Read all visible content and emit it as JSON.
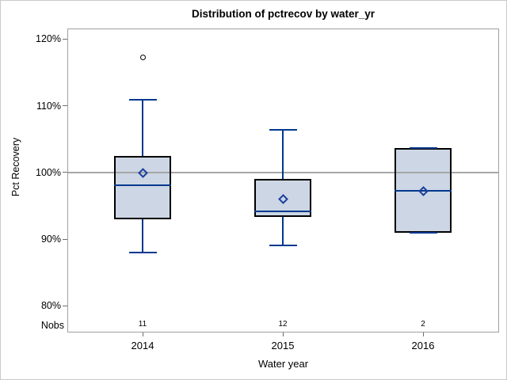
{
  "chart_data": {
    "type": "boxplot",
    "title": "Distribution of pctrecov by water_yr",
    "xlabel": "Water year",
    "ylabel": "Pct Recovery",
    "nobs_label": "Nobs",
    "y_axis": {
      "min": 80,
      "max": 120,
      "ticks": [
        120,
        110,
        100,
        90,
        80
      ],
      "tick_suffix": "%"
    },
    "reference_line": 100,
    "categories": [
      "2014",
      "2015",
      "2016"
    ],
    "series": [
      {
        "category": "2014",
        "low": 88.0,
        "q1": 93.0,
        "median": 98.1,
        "q3": 102.5,
        "high": 110.9,
        "mean": 99.9,
        "outliers": [
          117.2
        ],
        "nobs": "11"
      },
      {
        "category": "2015",
        "low": 89.1,
        "q1": 93.3,
        "median": 94.2,
        "q3": 99.0,
        "high": 106.4,
        "mean": 96.0,
        "outliers": [],
        "nobs": "12"
      },
      {
        "category": "2016",
        "low": 90.9,
        "q1": 90.9,
        "median": 97.2,
        "q3": 103.6,
        "high": 103.6,
        "mean": 97.2,
        "outliers": [],
        "nobs": "2"
      }
    ],
    "legend": null,
    "grid": "reference line at 100% only",
    "colors": {
      "box_fill": "#ccd6e4",
      "box_border": "#000000",
      "whisker": "#00388e",
      "median": "#00388e",
      "mean_marker": "#1b3f9e",
      "reference": "#a6a6a6",
      "outlier": "#000000",
      "frame": "#a0a0a0",
      "tick": "#6e6e6e",
      "text": "#000000"
    }
  }
}
